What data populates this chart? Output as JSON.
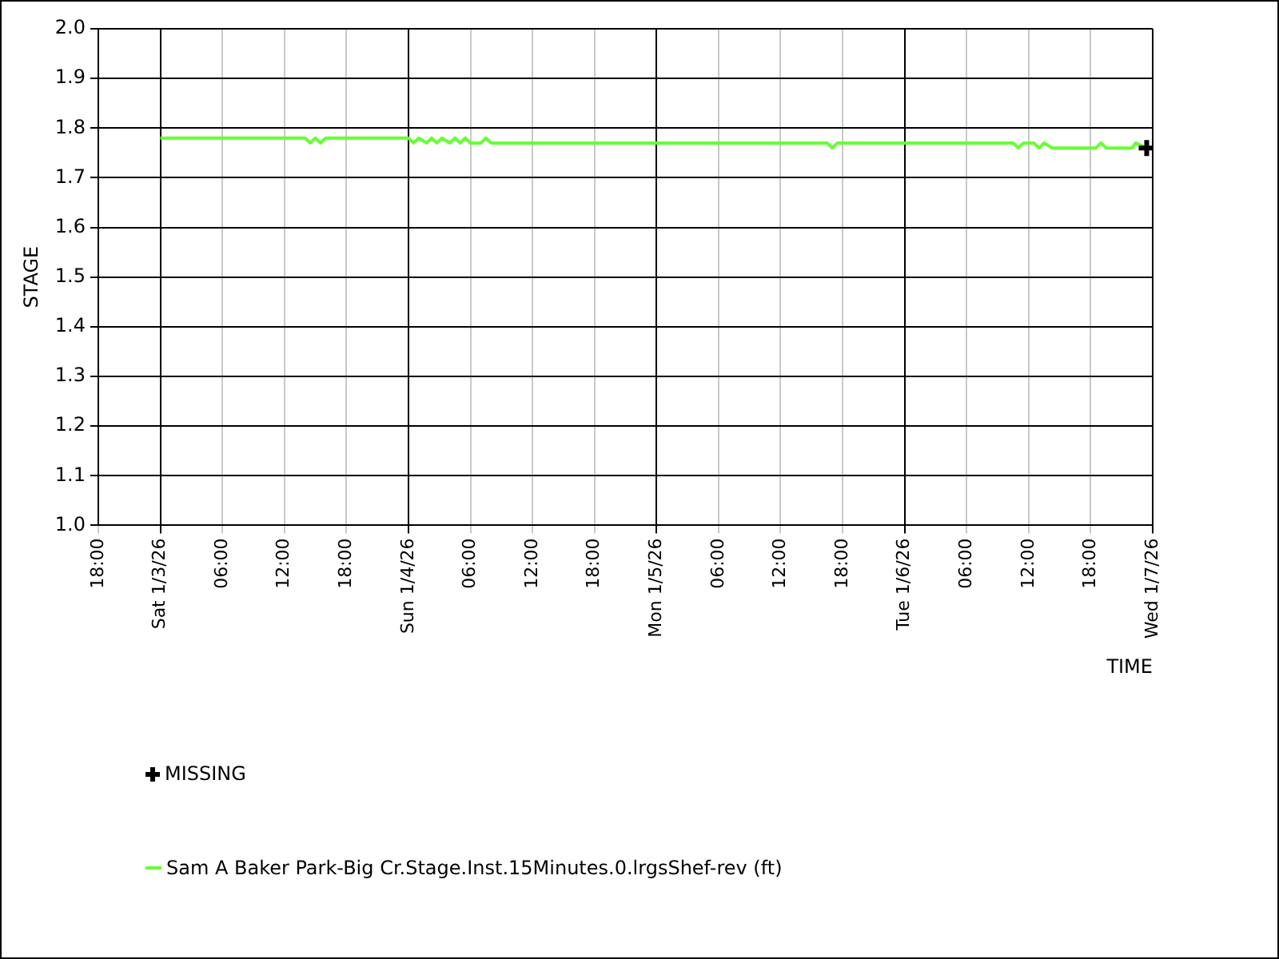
{
  "chart_data": {
    "type": "line",
    "xlabel": "TIME",
    "ylabel": "STAGE",
    "xlim": [
      "--01-02T18:00",
      "--01-07T00:00"
    ],
    "xticks": [
      {
        "value": "--01-02T18:00",
        "label": "18:00"
      },
      {
        "value": "--01-03T00:00",
        "label": "Sat 1/3/26"
      },
      {
        "value": "--01-03T06:00",
        "label": "06:00"
      },
      {
        "value": "--01-03T12:00",
        "label": "12:00"
      },
      {
        "value": "--01-03T18:00",
        "label": "18:00"
      },
      {
        "value": "--01-04T00:00",
        "label": "Sun 1/4/26"
      },
      {
        "value": "--01-04T06:00",
        "label": "06:00"
      },
      {
        "value": "--01-04T12:00",
        "label": "12:00"
      },
      {
        "value": "--01-04T18:00",
        "label": "18:00"
      },
      {
        "value": "--01-05T00:00",
        "label": "Mon 1/5/26"
      },
      {
        "value": "--01-05T06:00",
        "label": "06:00"
      },
      {
        "value": "--01-05T12:00",
        "label": "12:00"
      },
      {
        "value": "--01-05T18:00",
        "label": "18:00"
      },
      {
        "value": "--01-06T00:00",
        "label": "Tue 1/6/26"
      },
      {
        "value": "--01-06T06:00",
        "label": "06:00"
      },
      {
        "value": "--01-06T12:00",
        "label": "12:00"
      },
      {
        "value": "--01-06T18:00",
        "label": "18:00"
      },
      {
        "value": "--01-07T00:00",
        "label": "Wed 1/7/26"
      }
    ],
    "ylim": [
      1.0,
      2.0
    ],
    "yticks": [
      {
        "value": 1.0,
        "label": "1.0"
      },
      {
        "value": 1.1,
        "label": "1.1"
      },
      {
        "value": 1.2,
        "label": "1.2"
      },
      {
        "value": 1.3,
        "label": "1.3"
      },
      {
        "value": 1.4,
        "label": "1.4"
      },
      {
        "value": 1.5,
        "label": "1.5"
      },
      {
        "value": 1.6,
        "label": "1.6"
      },
      {
        "value": 1.7,
        "label": "1.7"
      },
      {
        "value": 1.8,
        "label": "1.8"
      },
      {
        "value": 1.9,
        "label": "1.9"
      },
      {
        "value": 2.0,
        "label": "2.0"
      }
    ],
    "grid": true,
    "legend": "bottom left",
    "marker": "none",
    "line_style": "solid",
    "series": [
      {
        "name": "MISSING",
        "type": "scatter",
        "marker": "cross",
        "color": "#000000",
        "x": [
          "--01-06T23:25"
        ],
        "values": [
          1.76
        ]
      },
      {
        "name": "Sam A Baker Park-Big Cr.Stage.Inst.15Minutes.0.lrgsShef-rev (ft)",
        "type": "line",
        "color": "#66ff33",
        "x": [
          "--01-03T00:00",
          "--01-03T14:00",
          "--01-03T14:30",
          "--01-03T15:00",
          "--01-03T15:30",
          "--01-03T16:00",
          "--01-03T16:30",
          "--01-04T00:00",
          "--01-04T00:30",
          "--01-04T01:00",
          "--01-04T01:45",
          "--01-04T02:15",
          "--01-04T02:45",
          "--01-04T03:15",
          "--01-04T04:00",
          "--01-04T04:30",
          "--01-04T05:00",
          "--01-04T05:30",
          "--01-04T06:00",
          "--01-04T07:00",
          "--01-04T07:30",
          "--01-04T08:00",
          "--01-05T16:30",
          "--01-05T17:00",
          "--01-05T17:30",
          "--01-06T10:30",
          "--01-06T11:00",
          "--01-06T11:30",
          "--01-06T12:30",
          "--01-06T13:00",
          "--01-06T13:30",
          "--01-06T14:15",
          "--01-06T14:45",
          "--01-06T18:30",
          "--01-06T19:00",
          "--01-06T19:30",
          "--01-06T22:00",
          "--01-06T22:20",
          "--01-06T23:25"
        ],
        "values": [
          1.78,
          1.78,
          1.77,
          1.78,
          1.77,
          1.78,
          1.78,
          1.78,
          1.77,
          1.78,
          1.77,
          1.78,
          1.77,
          1.78,
          1.77,
          1.78,
          1.77,
          1.78,
          1.77,
          1.77,
          1.78,
          1.77,
          1.77,
          1.76,
          1.77,
          1.77,
          1.76,
          1.77,
          1.77,
          1.76,
          1.77,
          1.76,
          1.76,
          1.76,
          1.77,
          1.76,
          1.76,
          1.77,
          1.76
        ]
      }
    ]
  }
}
